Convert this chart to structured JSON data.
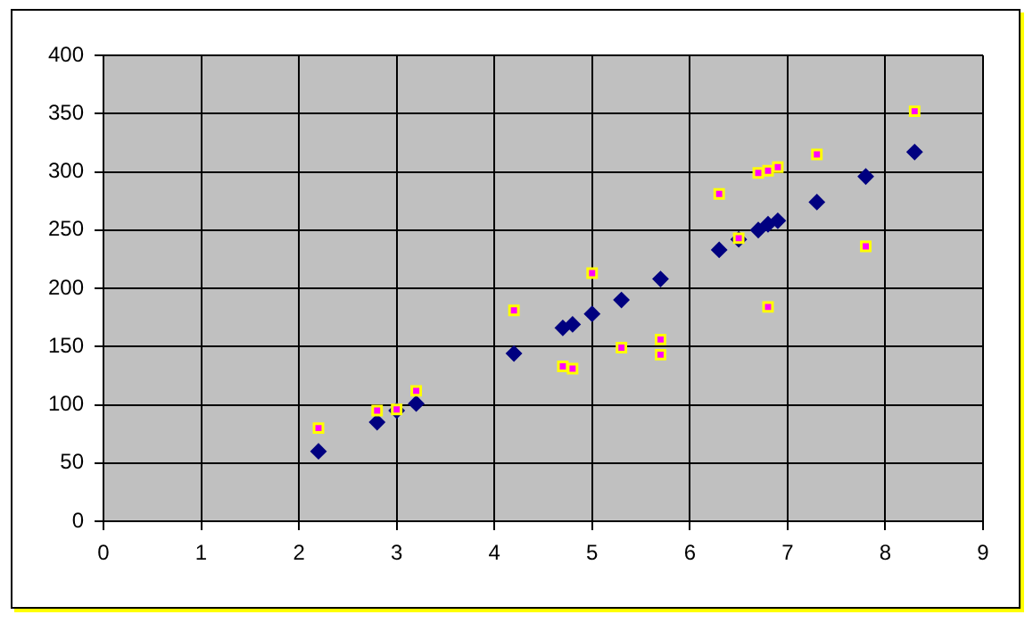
{
  "chart_data": {
    "type": "scatter",
    "xlim": [
      0,
      9
    ],
    "xticks": [
      0,
      1,
      2,
      3,
      4,
      5,
      6,
      7,
      8,
      9
    ],
    "ylim": [
      0,
      400
    ],
    "yticks": [
      0,
      50,
      100,
      150,
      200,
      250,
      300,
      350,
      400
    ],
    "grid": true,
    "legend": false,
    "series": [
      {
        "color": "#000080",
        "marker": "diamond",
        "x": [
          2.2,
          2.8,
          3.0,
          3.2,
          4.2,
          4.7,
          4.8,
          5.0,
          5.3,
          5.7,
          6.3,
          6.5,
          6.7,
          6.8,
          6.9,
          7.3,
          7.8,
          8.3
        ],
        "values": [
          60,
          85,
          95,
          101,
          144,
          166,
          169,
          178,
          190,
          208,
          233,
          242,
          250,
          255,
          258,
          274,
          296,
          317
        ]
      },
      {
        "color": "#ff00ff",
        "marker": "square",
        "x": [
          2.2,
          2.8,
          3.0,
          3.2,
          4.2,
          4.7,
          4.8,
          5.0,
          5.3,
          5.7,
          5.7,
          6.3,
          6.5,
          6.7,
          6.8,
          6.9,
          6.8,
          7.3,
          7.8,
          8.3
        ],
        "values": [
          80,
          95,
          96,
          112,
          181,
          133,
          131,
          213,
          149,
          156,
          143,
          281,
          243,
          299,
          301,
          304,
          184,
          315,
          236,
          352
        ]
      }
    ]
  }
}
